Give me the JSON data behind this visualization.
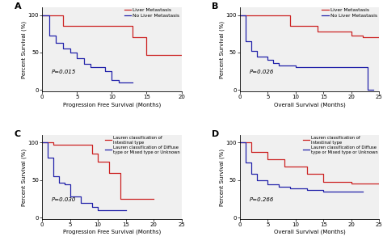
{
  "panels": [
    {
      "label": "A",
      "xlabel": "Progression Free Survival (Months)",
      "ylabel": "Percent Survival (%)",
      "pvalue": "P=0.015",
      "xlim": [
        0,
        20
      ],
      "ylim": [
        -2,
        110
      ],
      "xticks": [
        0,
        5,
        10,
        15,
        20
      ],
      "yticks": [
        0,
        50,
        100
      ],
      "legend1": "Liver Metastasis",
      "legend2": "No Liver Metastasis",
      "color1": "#cc2222",
      "color2": "#2222aa",
      "ls1": "-",
      "ls2": "-",
      "curve1_x": [
        0,
        3,
        3,
        13,
        13,
        15,
        15,
        20
      ],
      "curve1_y": [
        100,
        100,
        85,
        85,
        70,
        70,
        47,
        47
      ],
      "curve2_x": [
        0,
        1,
        1,
        2,
        2,
        3,
        3,
        4,
        4,
        5,
        5,
        6,
        6,
        7,
        7,
        9,
        9,
        10,
        10,
        11,
        11,
        13
      ],
      "curve2_y": [
        100,
        100,
        73,
        73,
        63,
        63,
        55,
        55,
        50,
        50,
        42,
        42,
        35,
        35,
        30,
        30,
        25,
        25,
        13,
        13,
        10,
        10
      ]
    },
    {
      "label": "B",
      "xlabel": "Overall Survival (Months)",
      "ylabel": "Percent Survival (%)",
      "pvalue": "P=0.026",
      "xlim": [
        0,
        25
      ],
      "ylim": [
        -2,
        110
      ],
      "xticks": [
        0,
        5,
        10,
        15,
        20,
        25
      ],
      "yticks": [
        0,
        50,
        100
      ],
      "legend1": "Liver Metastasis",
      "legend2": "No Liver Metastasis",
      "color1": "#cc2222",
      "color2": "#2222aa",
      "ls1": "-",
      "ls2": "-",
      "curve1_x": [
        0,
        9,
        9,
        14,
        14,
        20,
        20,
        22,
        22,
        25
      ],
      "curve1_y": [
        100,
        100,
        86,
        86,
        78,
        78,
        73,
        73,
        70,
        70
      ],
      "curve2_x": [
        0,
        1,
        1,
        2,
        2,
        3,
        3,
        5,
        5,
        6,
        6,
        7,
        7,
        10,
        10,
        12,
        12,
        20,
        20,
        23,
        23,
        24
      ],
      "curve2_y": [
        100,
        100,
        65,
        65,
        52,
        52,
        44,
        44,
        40,
        40,
        36,
        36,
        33,
        33,
        31,
        31,
        30,
        30,
        30,
        30,
        0,
        0
      ]
    },
    {
      "label": "C",
      "xlabel": "Progression Free Survival (Months)",
      "ylabel": "Percent Survival (%)",
      "pvalue": "P=0.030",
      "xlim": [
        0,
        25
      ],
      "ylim": [
        -2,
        110
      ],
      "xticks": [
        0,
        5,
        10,
        15,
        20,
        25
      ],
      "yticks": [
        0,
        50,
        100
      ],
      "legend1": "Lauren classification of\nIntestinal type",
      "legend2": "Lauren classification of Diffuse\ntype or Mixed type or Unknown",
      "color1": "#cc2222",
      "color2": "#2222aa",
      "ls1": "-",
      "ls2": "-",
      "curve1_x": [
        0,
        2,
        2,
        9,
        9,
        10,
        10,
        12,
        12,
        14,
        14,
        20
      ],
      "curve1_y": [
        100,
        100,
        97,
        97,
        85,
        85,
        75,
        75,
        60,
        60,
        25,
        25
      ],
      "curve2_x": [
        0,
        1,
        1,
        2,
        2,
        3,
        3,
        4,
        4,
        5,
        5,
        7,
        7,
        9,
        9,
        10,
        10,
        15,
        15
      ],
      "curve2_y": [
        100,
        100,
        80,
        80,
        55,
        55,
        47,
        47,
        44,
        44,
        28,
        28,
        20,
        20,
        14,
        14,
        10,
        10,
        10
      ]
    },
    {
      "label": "D",
      "xlabel": "Overall Survival (Months)",
      "ylabel": "Percent Survival (%)",
      "pvalue": "P=0.266",
      "xlim": [
        0,
        25
      ],
      "ylim": [
        -2,
        110
      ],
      "xticks": [
        0,
        5,
        10,
        15,
        20,
        25
      ],
      "yticks": [
        0,
        50,
        100
      ],
      "legend1": "Lauren classification of\nIntestinal type",
      "legend2": "Lauren classification of Diffuse\ntype or Mixed type or Unknown",
      "color1": "#cc2222",
      "color2": "#2222aa",
      "ls1": "-",
      "ls2": "-",
      "curve1_x": [
        0,
        2,
        2,
        5,
        5,
        8,
        8,
        12,
        12,
        15,
        15,
        20,
        20,
        25
      ],
      "curve1_y": [
        100,
        100,
        88,
        88,
        78,
        78,
        68,
        68,
        58,
        58,
        48,
        48,
        46,
        46
      ],
      "curve2_x": [
        0,
        1,
        1,
        2,
        2,
        3,
        3,
        5,
        5,
        7,
        7,
        9,
        9,
        12,
        12,
        15,
        15,
        20,
        20,
        22,
        22
      ],
      "curve2_y": [
        100,
        100,
        73,
        73,
        58,
        58,
        50,
        50,
        44,
        44,
        41,
        41,
        39,
        39,
        37,
        37,
        35,
        35,
        35,
        35,
        35
      ]
    }
  ],
  "background": "#f0f0f0"
}
